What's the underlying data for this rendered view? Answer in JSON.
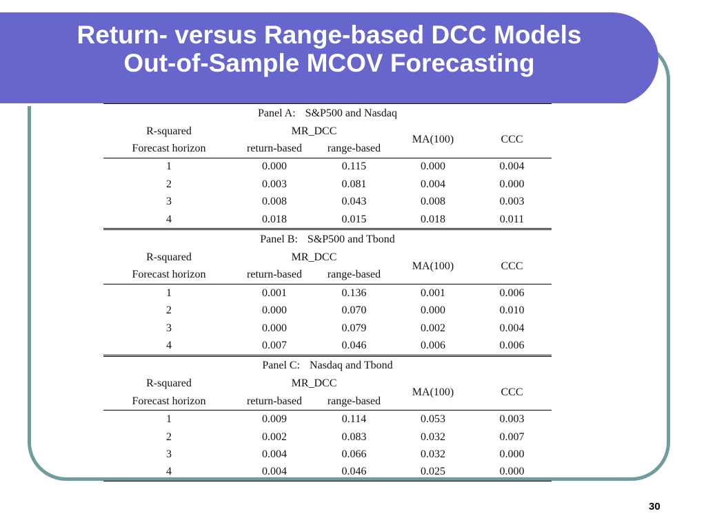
{
  "slide": {
    "title_line1": "Return- versus Range-based DCC Models",
    "title_line2": "Out-of-Sample MCOV Forecasting",
    "page_number": "30"
  },
  "table": {
    "header": {
      "r_squared": "R-squared",
      "forecast_horizon": "Forecast horizon",
      "mr_dcc": "MR_DCC",
      "return_based": "return-based",
      "range_based": "range-based",
      "ma100": "MA(100)",
      "ccc": "CCC"
    },
    "panels": [
      {
        "label": "Panel A:",
        "name": "S&P500 and Nasdaq",
        "rows": [
          [
            "1",
            "0.000",
            "0.115",
            "0.000",
            "0.004"
          ],
          [
            "2",
            "0.003",
            "0.081",
            "0.004",
            "0.000"
          ],
          [
            "3",
            "0.008",
            "0.043",
            "0.008",
            "0.003"
          ],
          [
            "4",
            "0.018",
            "0.015",
            "0.018",
            "0.011"
          ]
        ]
      },
      {
        "label": "Panel B:",
        "name": "S&P500 and Tbond",
        "rows": [
          [
            "1",
            "0.001",
            "0.136",
            "0.001",
            "0.006"
          ],
          [
            "2",
            "0.000",
            "0.070",
            "0.000",
            "0.010"
          ],
          [
            "3",
            "0.000",
            "0.079",
            "0.002",
            "0.004"
          ],
          [
            "4",
            "0.007",
            "0.046",
            "0.006",
            "0.006"
          ]
        ]
      },
      {
        "label": "Panel C:",
        "name": "Nasdaq and Tbond",
        "rows": [
          [
            "1",
            "0.009",
            "0.114",
            "0.053",
            "0.003"
          ],
          [
            "2",
            "0.002",
            "0.083",
            "0.032",
            "0.007"
          ],
          [
            "3",
            "0.004",
            "0.066",
            "0.032",
            "0.000"
          ],
          [
            "4",
            "0.004",
            "0.046",
            "0.025",
            "0.000"
          ]
        ]
      }
    ]
  }
}
